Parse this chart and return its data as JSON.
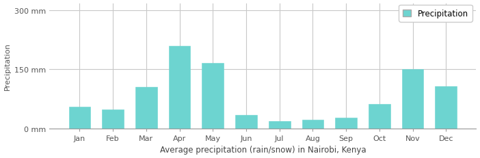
{
  "months": [
    "Jan",
    "Feb",
    "Mar",
    "Apr",
    "May",
    "Jun",
    "Jul",
    "Aug",
    "Sep",
    "Oct",
    "Nov",
    "Dec"
  ],
  "values": [
    55,
    48,
    105,
    210,
    167,
    35,
    18,
    23,
    28,
    63,
    150,
    108
  ],
  "bar_color": "#6DD4D0",
  "bar_edge_color": "#6DD4D0",
  "background_color": "#ffffff",
  "plot_bg_color": "#ffffff",
  "grid_color": "#c8c8c8",
  "title": "Average precipitation (rain/snow) in Nairobi, Kenya",
  "ylabel": "Precipitation",
  "yticks": [
    0,
    150,
    300
  ],
  "ytick_labels": [
    "0 mm",
    "150 mm",
    "300 mm"
  ],
  "ylim": [
    0,
    318
  ],
  "legend_label": "Precipitation",
  "title_fontsize": 8.5,
  "axis_fontsize": 8,
  "tick_fontsize": 8,
  "legend_fontsize": 8.5
}
